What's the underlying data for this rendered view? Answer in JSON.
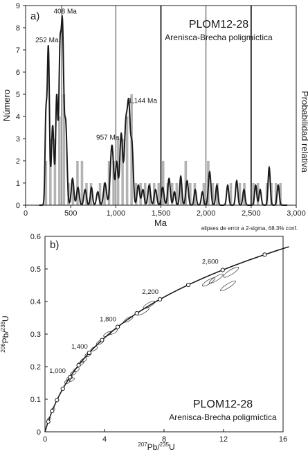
{
  "chart_data": [
    {
      "panel_label": "a)",
      "type": "bar",
      "title": "PLOM12-28",
      "subtitle": "Arenisca-Brecha poligmíctica",
      "xlabel": "Ma",
      "ylabel": "Número",
      "y2label": "Probabilidad relativa",
      "xlim": [
        0,
        3000
      ],
      "ylim": [
        0,
        9
      ],
      "x_ticks": [
        "0",
        "500",
        "1,000",
        "1,500",
        "2,000",
        "2,500",
        "3,000"
      ],
      "x_tick_values": [
        0,
        500,
        1000,
        1500,
        2000,
        2500,
        3000
      ],
      "y_ticks": [
        "0",
        "1",
        "2",
        "3",
        "4",
        "5",
        "6",
        "7",
        "8",
        "9"
      ],
      "y_tick_values": [
        0,
        1,
        2,
        3,
        4,
        5,
        6,
        7,
        8,
        9
      ],
      "bin_width": 50,
      "histogram": {
        "bin_starts": [
          200,
          250,
          300,
          350,
          400,
          450,
          500,
          550,
          600,
          650,
          700,
          750,
          800,
          850,
          900,
          950,
          1000,
          1050,
          1100,
          1150,
          1200,
          1250,
          1300,
          1350,
          1400,
          1450,
          1500,
          1550,
          1600,
          1650,
          1700,
          1750,
          1800,
          1850,
          1900,
          1950,
          2000,
          2050,
          2100,
          2150,
          2200,
          2250,
          2300,
          2350,
          2400,
          2450,
          2500,
          2550,
          2600,
          2650,
          2700,
          2750,
          2800
        ],
        "counts": [
          2,
          3,
          3,
          4,
          5,
          1,
          1,
          2,
          2,
          1,
          1,
          0,
          1,
          1,
          2,
          2,
          3,
          3,
          4,
          5,
          1,
          1,
          1,
          1,
          1,
          1,
          2,
          1,
          1,
          1,
          1,
          2,
          1,
          1,
          0,
          1,
          2,
          1,
          1,
          0,
          0,
          1,
          0,
          1,
          1,
          0,
          1,
          1,
          0,
          1,
          1,
          1,
          1
        ]
      },
      "probability_curve": {
        "peaks": [
          {
            "age": 225,
            "height": 3.8,
            "width": 10
          },
          {
            "age": 252,
            "height": 7.1,
            "width": 12
          },
          {
            "age": 300,
            "height": 3.6,
            "width": 14
          },
          {
            "age": 345,
            "height": 4.9,
            "width": 12
          },
          {
            "age": 380,
            "height": 6.2,
            "width": 12
          },
          {
            "age": 408,
            "height": 7.9,
            "width": 14
          },
          {
            "age": 445,
            "height": 3.6,
            "width": 14
          },
          {
            "age": 520,
            "height": 1.2,
            "width": 14
          },
          {
            "age": 580,
            "height": 0.8,
            "width": 14
          },
          {
            "age": 660,
            "height": 0.7,
            "width": 14
          },
          {
            "age": 730,
            "height": 0.8,
            "width": 12
          },
          {
            "age": 800,
            "height": 0.6,
            "width": 14
          },
          {
            "age": 880,
            "height": 1.0,
            "width": 16
          },
          {
            "age": 957,
            "height": 2.7,
            "width": 18
          },
          {
            "age": 1010,
            "height": 1.9,
            "width": 14
          },
          {
            "age": 1060,
            "height": 3.2,
            "width": 16
          },
          {
            "age": 1110,
            "height": 3.4,
            "width": 16
          },
          {
            "age": 1144,
            "height": 4.3,
            "width": 16
          },
          {
            "age": 1180,
            "height": 2.5,
            "width": 14
          },
          {
            "age": 1250,
            "height": 0.9,
            "width": 14
          },
          {
            "age": 1300,
            "height": 0.7,
            "width": 14
          },
          {
            "age": 1370,
            "height": 0.9,
            "width": 14
          },
          {
            "age": 1440,
            "height": 0.7,
            "width": 14
          },
          {
            "age": 1520,
            "height": 0.8,
            "width": 14
          },
          {
            "age": 1590,
            "height": 1.2,
            "width": 14
          },
          {
            "age": 1650,
            "height": 0.6,
            "width": 12
          },
          {
            "age": 1720,
            "height": 1.3,
            "width": 12
          },
          {
            "age": 1790,
            "height": 1.1,
            "width": 14
          },
          {
            "age": 1880,
            "height": 0.7,
            "width": 12
          },
          {
            "age": 1960,
            "height": 0.6,
            "width": 12
          },
          {
            "age": 2040,
            "height": 1.5,
            "width": 14
          },
          {
            "age": 2120,
            "height": 0.9,
            "width": 12
          },
          {
            "age": 2240,
            "height": 0.9,
            "width": 12
          },
          {
            "age": 2340,
            "height": 1.1,
            "width": 12
          },
          {
            "age": 2420,
            "height": 0.7,
            "width": 12
          },
          {
            "age": 2550,
            "height": 0.9,
            "width": 12
          },
          {
            "age": 2600,
            "height": 0.7,
            "width": 12
          },
          {
            "age": 2700,
            "height": 1.7,
            "width": 12
          },
          {
            "age": 2800,
            "height": 0.9,
            "width": 12
          }
        ]
      },
      "vertical_lines": [
        {
          "age": 400,
          "style": "thin"
        },
        {
          "age": 1000,
          "style": "thin"
        },
        {
          "age": 1500,
          "style": "thick"
        },
        {
          "age": 2000,
          "style": "thin"
        },
        {
          "age": 2500,
          "style": "thick"
        }
      ],
      "annotations": [
        {
          "text": "252 Ma",
          "x": 252,
          "y": 7.1
        },
        {
          "text": "408 Ma",
          "x": 408,
          "y": 8.2
        },
        {
          "text": "957 Ma",
          "x": 957,
          "y": 2.7
        },
        {
          "text": "1,144 Ma",
          "x": 1144,
          "y": 4.3
        }
      ],
      "legend": "none",
      "grid": false
    },
    {
      "panel_label": "b)",
      "type": "scatter",
      "title": "PLOM12-28",
      "subtitle": "Arenisca-Brecha poligmíctica",
      "note": "elipses de error a 2-sigma, 68.3% conf.",
      "xlabel": "207Pb/235U",
      "ylabel": "206Pb/238U",
      "xlim": [
        0,
        16
      ],
      "ylim": [
        0,
        0.6
      ],
      "x_ticks": [
        "0",
        "4",
        "8",
        "12",
        "16"
      ],
      "x_tick_values": [
        0,
        4,
        8,
        12,
        16
      ],
      "y_ticks": [
        "0",
        "0.1",
        "0.2",
        "0.3",
        "0.4",
        "0.5",
        "0.6"
      ],
      "y_tick_values": [
        0,
        0.1,
        0.2,
        0.3,
        0.4,
        0.5,
        0.6
      ],
      "concordia_age_range_ma": [
        0,
        3000
      ],
      "concordia_markers_ma": [
        200,
        400,
        600,
        800,
        1000,
        1200,
        1400,
        1600,
        1800,
        2000,
        2200,
        2400,
        2600,
        2800
      ],
      "concordia_labels": [
        {
          "text": "1,000",
          "age": 1000
        },
        {
          "text": "1,400",
          "age": 1400
        },
        {
          "text": "1,800",
          "age": 1800
        },
        {
          "text": "2,200",
          "age": 2200
        },
        {
          "text": "2,600",
          "age": 2600
        }
      ],
      "ellipses": [
        {
          "x": 0.28,
          "y": 0.04,
          "rx": 0.1,
          "ry": 0.0035,
          "angle": -30
        },
        {
          "x": 0.48,
          "y": 0.063,
          "rx": 0.12,
          "ry": 0.004,
          "angle": -30
        },
        {
          "x": 0.55,
          "y": 0.069,
          "rx": 0.12,
          "ry": 0.004,
          "angle": -30
        },
        {
          "x": 1.5,
          "y": 0.154,
          "rx": 0.2,
          "ry": 0.005,
          "angle": -30
        },
        {
          "x": 1.65,
          "y": 0.165,
          "rx": 0.22,
          "ry": 0.005,
          "angle": -30
        },
        {
          "x": 1.9,
          "y": 0.18,
          "rx": 0.22,
          "ry": 0.005,
          "angle": -30
        },
        {
          "x": 2.1,
          "y": 0.19,
          "rx": 0.22,
          "ry": 0.005,
          "angle": -30
        },
        {
          "x": 1.8,
          "y": 0.16,
          "rx": 0.2,
          "ry": 0.004,
          "angle": -30
        },
        {
          "x": 2.4,
          "y": 0.21,
          "rx": 0.24,
          "ry": 0.005,
          "angle": -30
        },
        {
          "x": 2.6,
          "y": 0.22,
          "rx": 0.24,
          "ry": 0.005,
          "angle": -30
        },
        {
          "x": 2.9,
          "y": 0.237,
          "rx": 0.24,
          "ry": 0.005,
          "angle": -30
        },
        {
          "x": 3.3,
          "y": 0.255,
          "rx": 0.26,
          "ry": 0.005,
          "angle": -30
        },
        {
          "x": 3.7,
          "y": 0.275,
          "rx": 0.28,
          "ry": 0.005,
          "angle": -30
        },
        {
          "x": 4.2,
          "y": 0.3,
          "rx": 0.3,
          "ry": 0.005,
          "angle": -30
        },
        {
          "x": 4.6,
          "y": 0.307,
          "rx": 0.3,
          "ry": 0.005,
          "angle": -30
        },
        {
          "x": 5.6,
          "y": 0.345,
          "rx": 0.35,
          "ry": 0.005,
          "angle": -30
        },
        {
          "x": 6.6,
          "y": 0.37,
          "rx": 0.45,
          "ry": 0.006,
          "angle": -30
        },
        {
          "x": 7.0,
          "y": 0.39,
          "rx": 0.45,
          "ry": 0.006,
          "angle": -30
        },
        {
          "x": 11.0,
          "y": 0.46,
          "rx": 0.5,
          "ry": 0.006,
          "angle": -32
        },
        {
          "x": 11.5,
          "y": 0.47,
          "rx": 0.55,
          "ry": 0.006,
          "angle": -32
        },
        {
          "x": 12.5,
          "y": 0.49,
          "rx": 0.6,
          "ry": 0.007,
          "angle": -32
        },
        {
          "x": 12.3,
          "y": 0.448,
          "rx": 0.6,
          "ry": 0.006,
          "angle": -32
        }
      ],
      "legend": "none",
      "grid": false
    }
  ]
}
